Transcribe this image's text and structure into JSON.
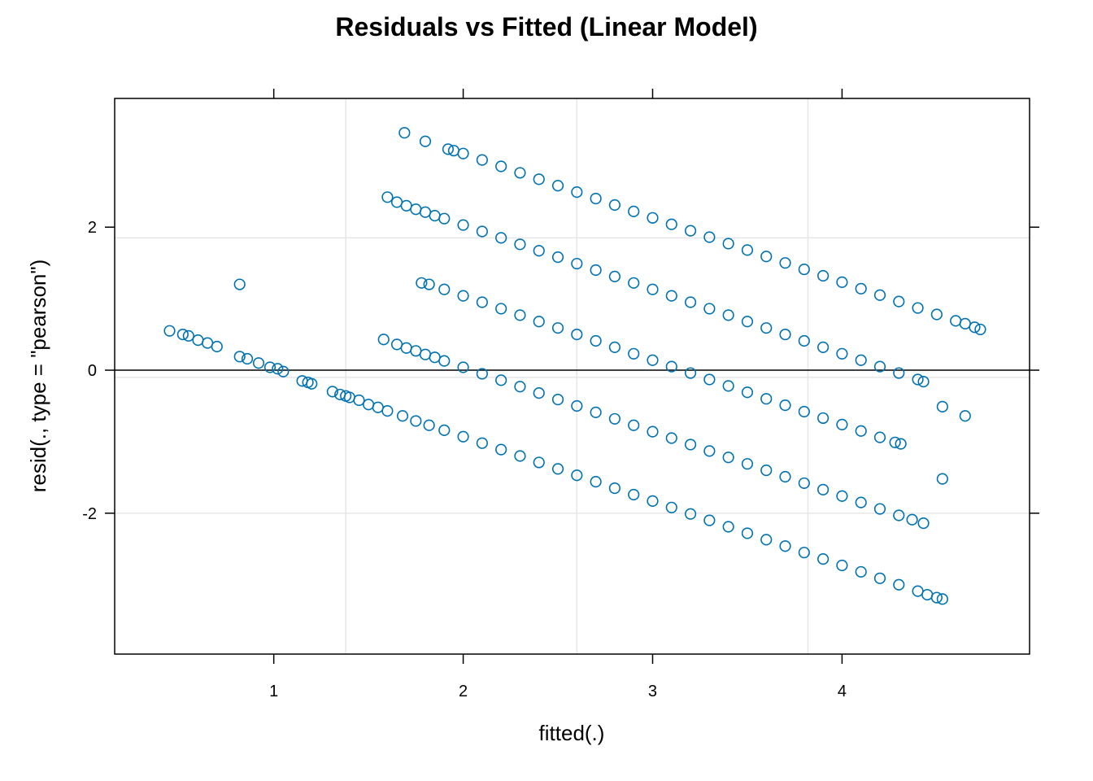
{
  "chart_data": {
    "type": "scatter",
    "title": "Residuals vs Fitted (Linear Model)",
    "xlabel": "fitted(.)",
    "ylabel": "resid(., type = \"pearson\")",
    "xlim": [
      0.16,
      4.99
    ],
    "ylim": [
      -3.97,
      3.8
    ],
    "x_ticks": [
      1,
      2,
      3,
      4
    ],
    "x_tick_labels": [
      "1",
      "2",
      "3",
      "4"
    ],
    "y_ticks": [
      -2,
      0,
      2
    ],
    "y_tick_labels": [
      "-2",
      "0",
      "2"
    ],
    "grid": true,
    "grid_x": [
      1.38,
      2.6,
      3.82
    ],
    "grid_y": [
      -2.0,
      -0.1,
      1.85
    ],
    "reference_line_y": 0,
    "point_color": "#0072B2",
    "grid_color": "#e6e6e6",
    "series": [
      {
        "x": [
          0.45,
          0.52,
          0.55,
          0.6,
          0.65,
          0.7,
          0.82,
          0.86,
          0.92,
          0.98,
          1.02,
          1.05,
          1.15,
          1.18,
          1.2,
          1.31,
          1.35,
          1.38,
          1.4,
          1.45,
          1.5,
          1.55,
          1.6,
          1.68,
          1.75,
          1.82,
          1.9,
          2.0,
          2.1,
          2.2,
          2.3,
          2.4,
          2.5,
          2.6,
          2.7,
          2.8,
          2.9,
          3.0,
          3.1,
          3.2,
          3.3,
          3.4,
          3.5,
          3.6,
          3.7,
          3.8,
          3.9,
          4.0,
          4.1,
          4.2,
          4.3,
          4.4,
          4.45,
          4.5,
          4.53
        ],
        "y": [
          0.55,
          0.5,
          0.48,
          0.42,
          0.38,
          0.33,
          0.19,
          0.16,
          0.1,
          0.04,
          0.02,
          -0.02,
          -0.15,
          -0.17,
          -0.19,
          -0.3,
          -0.34,
          -0.36,
          -0.38,
          -0.42,
          -0.48,
          -0.52,
          -0.57,
          -0.64,
          -0.71,
          -0.77,
          -0.84,
          -0.93,
          -1.02,
          -1.11,
          -1.2,
          -1.29,
          -1.38,
          -1.47,
          -1.56,
          -1.65,
          -1.74,
          -1.83,
          -1.92,
          -2.01,
          -2.1,
          -2.19,
          -2.28,
          -2.37,
          -2.46,
          -2.55,
          -2.64,
          -2.73,
          -2.82,
          -2.91,
          -3.0,
          -3.09,
          -3.14,
          -3.18,
          -3.2
        ]
      },
      {
        "x": [
          1.58,
          1.65,
          1.7,
          1.75,
          1.8,
          1.85,
          1.9,
          2.0,
          2.1,
          2.2,
          2.3,
          2.4,
          2.5,
          2.6,
          2.7,
          2.8,
          2.9,
          3.0,
          3.1,
          3.2,
          3.3,
          3.4,
          3.5,
          3.6,
          3.7,
          3.8,
          3.9,
          4.0,
          4.1,
          4.2,
          4.3,
          4.37,
          4.43,
          4.53,
          4.65
        ],
        "y": [
          0.43,
          0.36,
          0.31,
          0.27,
          0.22,
          0.18,
          0.13,
          0.04,
          -0.05,
          -0.14,
          -0.23,
          -0.32,
          -0.41,
          -0.5,
          -0.59,
          -0.68,
          -0.77,
          -0.86,
          -0.95,
          -1.04,
          -1.13,
          -1.22,
          -1.31,
          -1.4,
          -1.49,
          -1.58,
          -1.67,
          -1.76,
          -1.85,
          -1.94,
          -2.03,
          -2.09,
          -2.14,
          -0.51,
          -0.64
        ]
      },
      {
        "x": [
          1.78,
          1.82,
          1.9,
          2.0,
          2.1,
          2.2,
          2.3,
          2.4,
          2.5,
          2.6,
          2.7,
          2.8,
          2.9,
          3.0,
          3.1,
          3.2,
          3.3,
          3.4,
          3.5,
          3.6,
          3.7,
          3.8,
          3.9,
          4.0,
          4.1,
          4.2,
          4.28,
          4.31,
          4.53
        ],
        "y": [
          1.22,
          1.2,
          1.13,
          1.04,
          0.95,
          0.86,
          0.77,
          0.68,
          0.59,
          0.5,
          0.41,
          0.32,
          0.23,
          0.14,
          0.05,
          -0.04,
          -0.13,
          -0.22,
          -0.31,
          -0.4,
          -0.49,
          -0.58,
          -0.67,
          -0.76,
          -0.85,
          -0.94,
          -1.01,
          -1.03,
          -1.52
        ]
      },
      {
        "x": [
          1.6,
          1.65,
          1.7,
          1.75,
          1.8,
          1.85,
          1.9,
          2.0,
          2.1,
          2.2,
          2.3,
          2.4,
          2.5,
          2.6,
          2.7,
          2.8,
          2.9,
          3.0,
          3.1,
          3.2,
          3.3,
          3.4,
          3.5,
          3.6,
          3.7,
          3.8,
          3.9,
          4.0,
          4.1,
          4.2,
          4.3,
          4.4,
          4.43
        ],
        "y": [
          2.42,
          2.35,
          2.3,
          2.25,
          2.21,
          2.16,
          2.12,
          2.03,
          1.94,
          1.85,
          1.76,
          1.67,
          1.58,
          1.49,
          1.4,
          1.31,
          1.22,
          1.13,
          1.04,
          0.95,
          0.86,
          0.77,
          0.68,
          0.59,
          0.5,
          0.41,
          0.32,
          0.23,
          0.14,
          0.05,
          -0.04,
          -0.13,
          -0.16
        ]
      },
      {
        "x": [
          1.69,
          1.8,
          1.92,
          1.95,
          2.0,
          2.1,
          2.2,
          2.3,
          2.4,
          2.5,
          2.6,
          2.7,
          2.8,
          2.9,
          3.0,
          3.1,
          3.2,
          3.3,
          3.4,
          3.5,
          3.6,
          3.7,
          3.8,
          3.9,
          4.0,
          4.1,
          4.2,
          4.3,
          4.4,
          4.5,
          4.6,
          4.65,
          4.7,
          4.73
        ],
        "y": [
          3.32,
          3.2,
          3.09,
          3.07,
          3.03,
          2.94,
          2.85,
          2.76,
          2.67,
          2.58,
          2.49,
          2.4,
          2.31,
          2.22,
          2.13,
          2.04,
          1.95,
          1.86,
          1.77,
          1.68,
          1.59,
          1.5,
          1.41,
          1.32,
          1.23,
          1.14,
          1.05,
          0.96,
          0.87,
          0.78,
          0.69,
          0.65,
          0.6,
          0.57
        ]
      },
      {
        "x": [
          0.82
        ],
        "y": [
          1.2
        ]
      }
    ]
  }
}
